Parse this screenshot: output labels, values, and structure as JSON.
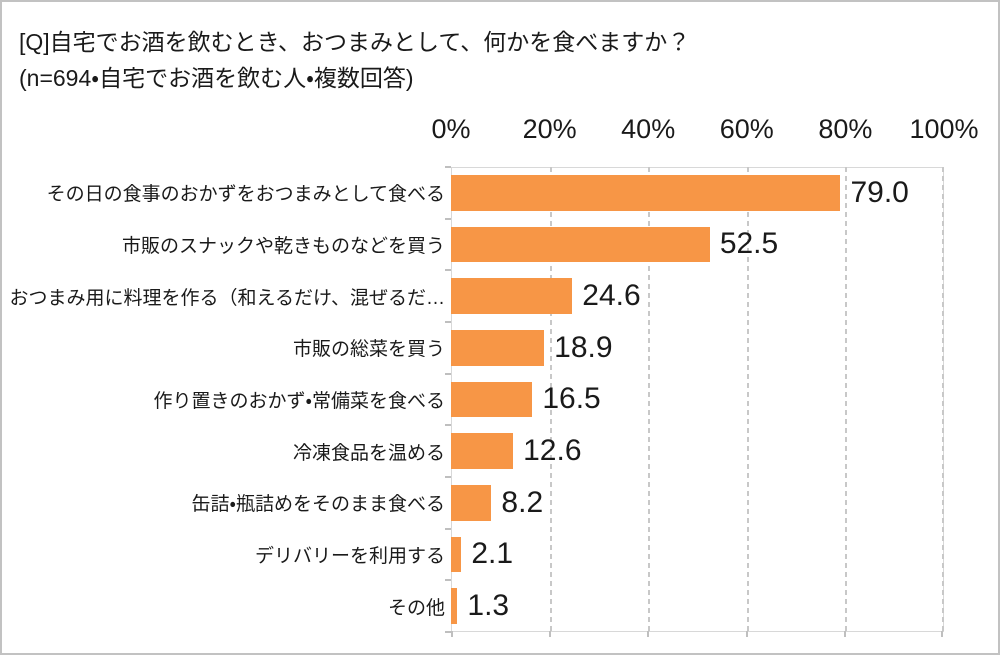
{
  "chart_data": {
    "type": "bar",
    "orientation": "horizontal",
    "title": "[Q]自宅でお酒を飲むとき、おつまみとして、何かを食べますか？",
    "subtitle": "(n=694・自宅でお酒を飲む人・複数回答)",
    "categories": [
      "その日の食事のおかずをおつまみとして食べる",
      "市販のスナックや乾きものなどを買う",
      "おつまみ用に料理を作る（和えるだけ、混ぜるだ…",
      "市販の総菜を買う",
      "作り置きのおかず・常備菜を食べる",
      "冷凍食品を温める",
      "缶詰・瓶詰めをそのまま食べる",
      "デリバリーを利用する",
      "その他"
    ],
    "values": [
      79.0,
      52.5,
      24.6,
      18.9,
      16.5,
      12.6,
      8.2,
      2.1,
      1.3
    ],
    "value_labels": [
      "79.0",
      "52.5",
      "24.6",
      "18.9",
      "16.5",
      "12.6",
      "8.2",
      "2.1",
      "1.3"
    ],
    "x_tick_labels": [
      "0%",
      "20%",
      "40%",
      "60%",
      "80%",
      "100%"
    ],
    "xlim": [
      0,
      100
    ],
    "x_tick_interval": 20,
    "grid": "vertical dashed gridlines, tick labels on top, no legend",
    "colors": {
      "bar": "#F79646",
      "gridline": "#C8C8C8",
      "plot_border": "#D8D8D8",
      "outer_border": "#C2C2C2",
      "text": "#1A1A1A"
    }
  }
}
